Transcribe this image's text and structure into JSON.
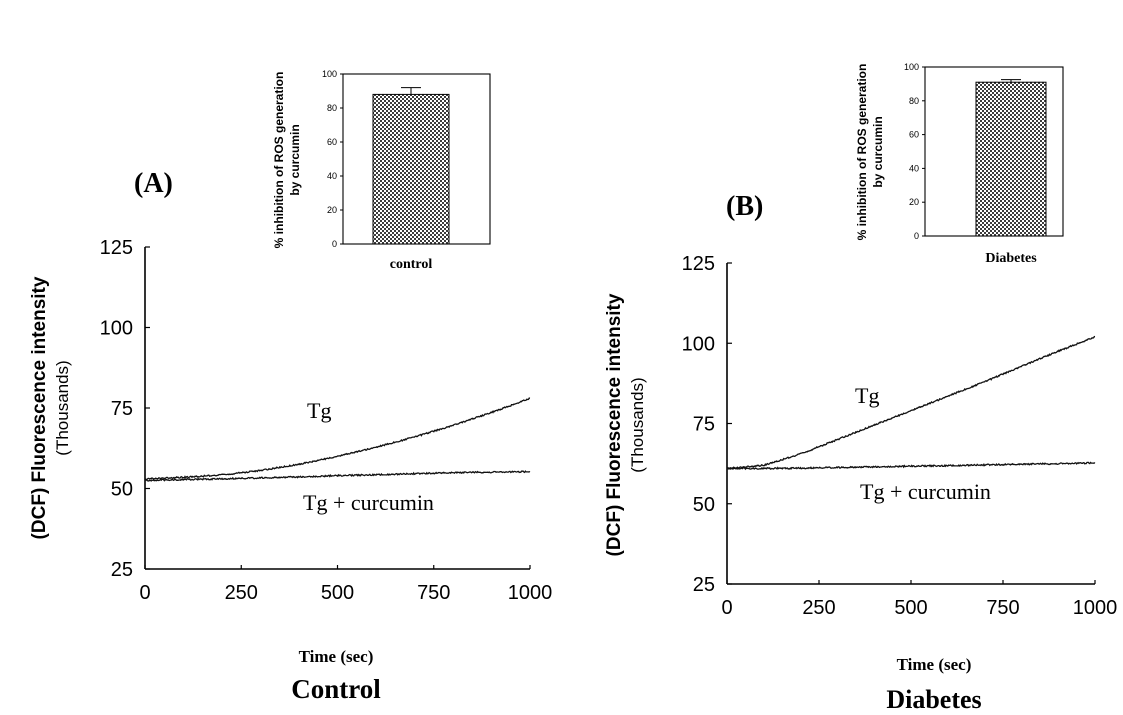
{
  "chart_data": [
    {
      "type": "line",
      "panel_label": "(A)",
      "caption": "Control",
      "xlabel": "Time (sec)",
      "ylabel": "(DCF) Fluorescence intensity",
      "ylabel2": "(Thousands)",
      "xlim": [
        0,
        1000
      ],
      "ylim": [
        25,
        125
      ],
      "xticks": [
        0,
        250,
        500,
        750,
        1000
      ],
      "yticks": [
        25,
        50,
        75,
        100,
        125
      ],
      "grid": false,
      "legend": "none",
      "series": [
        {
          "name": "Tg",
          "x": [
            0,
            100,
            200,
            300,
            400,
            500,
            600,
            700,
            800,
            900,
            1000
          ],
          "y": [
            53,
            53.5,
            54.2,
            55.6,
            57.5,
            60,
            62.8,
            66,
            69.6,
            73.6,
            78
          ]
        },
        {
          "name": "Tg + curcumin",
          "x": [
            0,
            100,
            200,
            300,
            400,
            500,
            600,
            700,
            800,
            900,
            1000
          ],
          "y": [
            52.5,
            52.8,
            53,
            53.3,
            53.6,
            54,
            54.3,
            54.6,
            54.9,
            55.1,
            55.2
          ]
        }
      ]
    },
    {
      "type": "bar",
      "inset_of": "(A)",
      "categories": [
        "control"
      ],
      "values": [
        88
      ],
      "errors": [
        4
      ],
      "ylabel": "% inhibition of ROS generation",
      "ylabel2": "by curcumin",
      "ylim": [
        0,
        100
      ],
      "yticks": [
        0,
        20,
        40,
        60,
        80,
        100
      ]
    },
    {
      "type": "line",
      "panel_label": "(B)",
      "caption": "Diabetes",
      "xlabel": "Time (sec)",
      "ylabel": "(DCF) Fluorescence intensity",
      "ylabel2": "(Thousands)",
      "xlim": [
        0,
        1000
      ],
      "ylim": [
        25,
        125
      ],
      "xticks": [
        0,
        250,
        500,
        750,
        1000
      ],
      "yticks": [
        25,
        50,
        75,
        100,
        125
      ],
      "grid": false,
      "legend": "none",
      "series": [
        {
          "name": "Tg",
          "x": [
            0,
            100,
            200,
            300,
            400,
            500,
            600,
            700,
            800,
            900,
            1000
          ],
          "y": [
            61,
            62,
            65.5,
            70,
            74.5,
            79,
            83.5,
            88,
            92.8,
            97.5,
            102
          ]
        },
        {
          "name": "Tg + curcumin",
          "x": [
            0,
            100,
            200,
            300,
            400,
            500,
            600,
            700,
            800,
            900,
            1000
          ],
          "y": [
            61,
            61,
            61.1,
            61.3,
            61.5,
            61.7,
            61.9,
            62.1,
            62.3,
            62.5,
            62.7
          ]
        }
      ]
    },
    {
      "type": "bar",
      "inset_of": "(B)",
      "categories": [
        "Diabetes"
      ],
      "values": [
        91
      ],
      "errors": [
        1.5
      ],
      "ylabel": "% inhibition of ROS generation",
      "ylabel2": "by curcumin",
      "ylim": [
        0,
        100
      ],
      "yticks": [
        0,
        20,
        40,
        60,
        80,
        100
      ]
    }
  ]
}
